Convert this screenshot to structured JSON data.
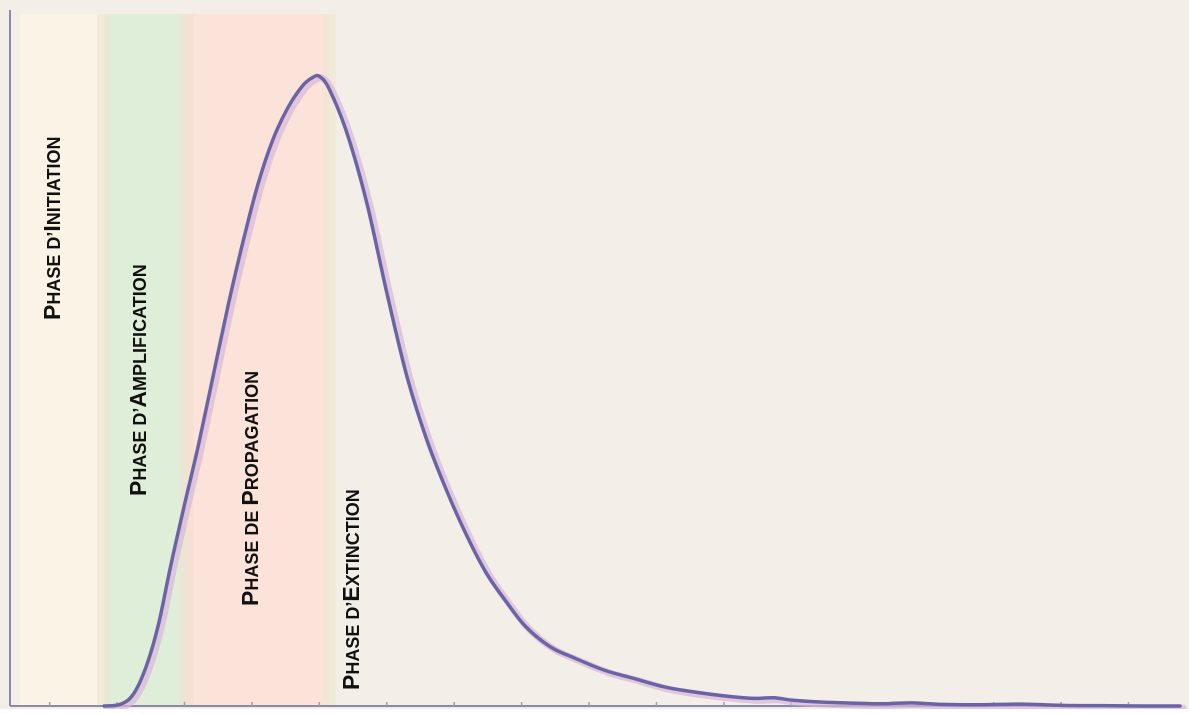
{
  "chart_data": {
    "type": "area",
    "title": "",
    "xlabel": "",
    "ylabel": "",
    "xlim": [
      0,
      1180
    ],
    "ylim": [
      0,
      100
    ],
    "grid": false,
    "phases": [
      {
        "label_first": "P",
        "label_rest": "HASE D’I",
        "label_first2": "",
        "label_rest2": "NITIATION",
        "x_start": 10,
        "x_end": 95,
        "color": "#fbf3e6"
      },
      {
        "label_first": "P",
        "label_rest": "HASE D’A",
        "label_first2": "",
        "label_rest2": "MPLIFICATION",
        "x_start": 95,
        "x_end": 178,
        "color": "#dfeed9"
      },
      {
        "label_first": "P",
        "label_rest": "HASE DE P",
        "label_first2": "",
        "label_rest2": "ROPAGATION",
        "x_start": 178,
        "x_end": 322,
        "color": "#fbe3da"
      },
      {
        "label_first": "P",
        "label_rest": "HASE D’E",
        "label_first2": "",
        "label_rest2": "XTINCTION",
        "x_start": 322,
        "x_end": 1180,
        "color": "#f3efe8"
      }
    ],
    "labels": [
      {
        "text": "Phase d’Initiation"
      },
      {
        "text": "Phase d’Amplification"
      },
      {
        "text": "Phase de Propagation"
      },
      {
        "text": "Phase d’Extinction"
      }
    ],
    "series": [
      {
        "color": "#6a64a6",
        "x": [
          95,
          112,
          125,
          138,
          150,
          162,
          175,
          190,
          205,
          220,
          235,
          250,
          265,
          280,
          295,
          305,
          312,
          322,
          340,
          360,
          380,
          400,
          420,
          440,
          460,
          480,
          500,
          520,
          545,
          570,
          600,
          630,
          660,
          690,
          720,
          750,
          770,
          790,
          820,
          850,
          880,
          910,
          940,
          980,
          1020,
          1060,
          1100,
          1140,
          1180
        ],
        "y": [
          0,
          0.3,
          2,
          6.5,
          13,
          22,
          31,
          41,
          52,
          63,
          73,
          82,
          89,
          94,
          97.5,
          98.8,
          99,
          97,
          90,
          79,
          65,
          52,
          42,
          34,
          27,
          21,
          16.5,
          12.5,
          9.3,
          7.5,
          5.6,
          4.3,
          3,
          2.2,
          1.6,
          1.2,
          1.3,
          0.9,
          0.6,
          0.45,
          0.35,
          0.5,
          0.25,
          0.2,
          0.3,
          0.1,
          0.05,
          0,
          0
        ]
      }
    ]
  }
}
